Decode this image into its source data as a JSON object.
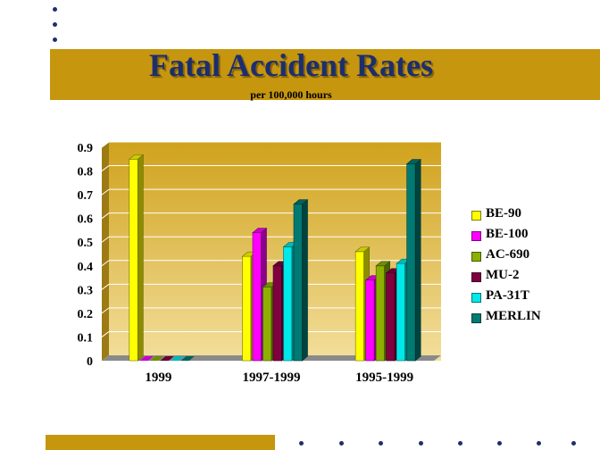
{
  "slide": {
    "title": "Fatal Accident Rates",
    "subtitle": "per 100,000 hours"
  },
  "chart_data": {
    "type": "bar",
    "title": "",
    "xlabel": "",
    "ylabel": "",
    "ylim": [
      0,
      0.9
    ],
    "yticks": [
      "0",
      "0.1",
      "0.2",
      "0.3",
      "0.4",
      "0.5",
      "0.6",
      "0.7",
      "0.8",
      "0.9"
    ],
    "grid": true,
    "legend_position": "right",
    "categories": [
      "1999",
      "1997-1999",
      "1995-1999"
    ],
    "series": [
      {
        "name": "BE-90",
        "color": "#ffff00",
        "values": [
          0.85,
          0.44,
          0.46
        ]
      },
      {
        "name": "BE-100",
        "color": "#ff00ff",
        "values": [
          0.0,
          0.54,
          0.34
        ]
      },
      {
        "name": "AC-690",
        "color": "#8db000",
        "values": [
          0.0,
          0.31,
          0.4
        ]
      },
      {
        "name": "MU-2",
        "color": "#800040",
        "values": [
          0.0,
          0.4,
          0.37
        ]
      },
      {
        "name": "PA-31T",
        "color": "#00e8e8",
        "values": [
          0.0,
          0.48,
          0.41
        ]
      },
      {
        "name": "MERLIN",
        "color": "#007a72",
        "values": [
          0.0,
          0.66,
          0.83
        ]
      }
    ]
  }
}
